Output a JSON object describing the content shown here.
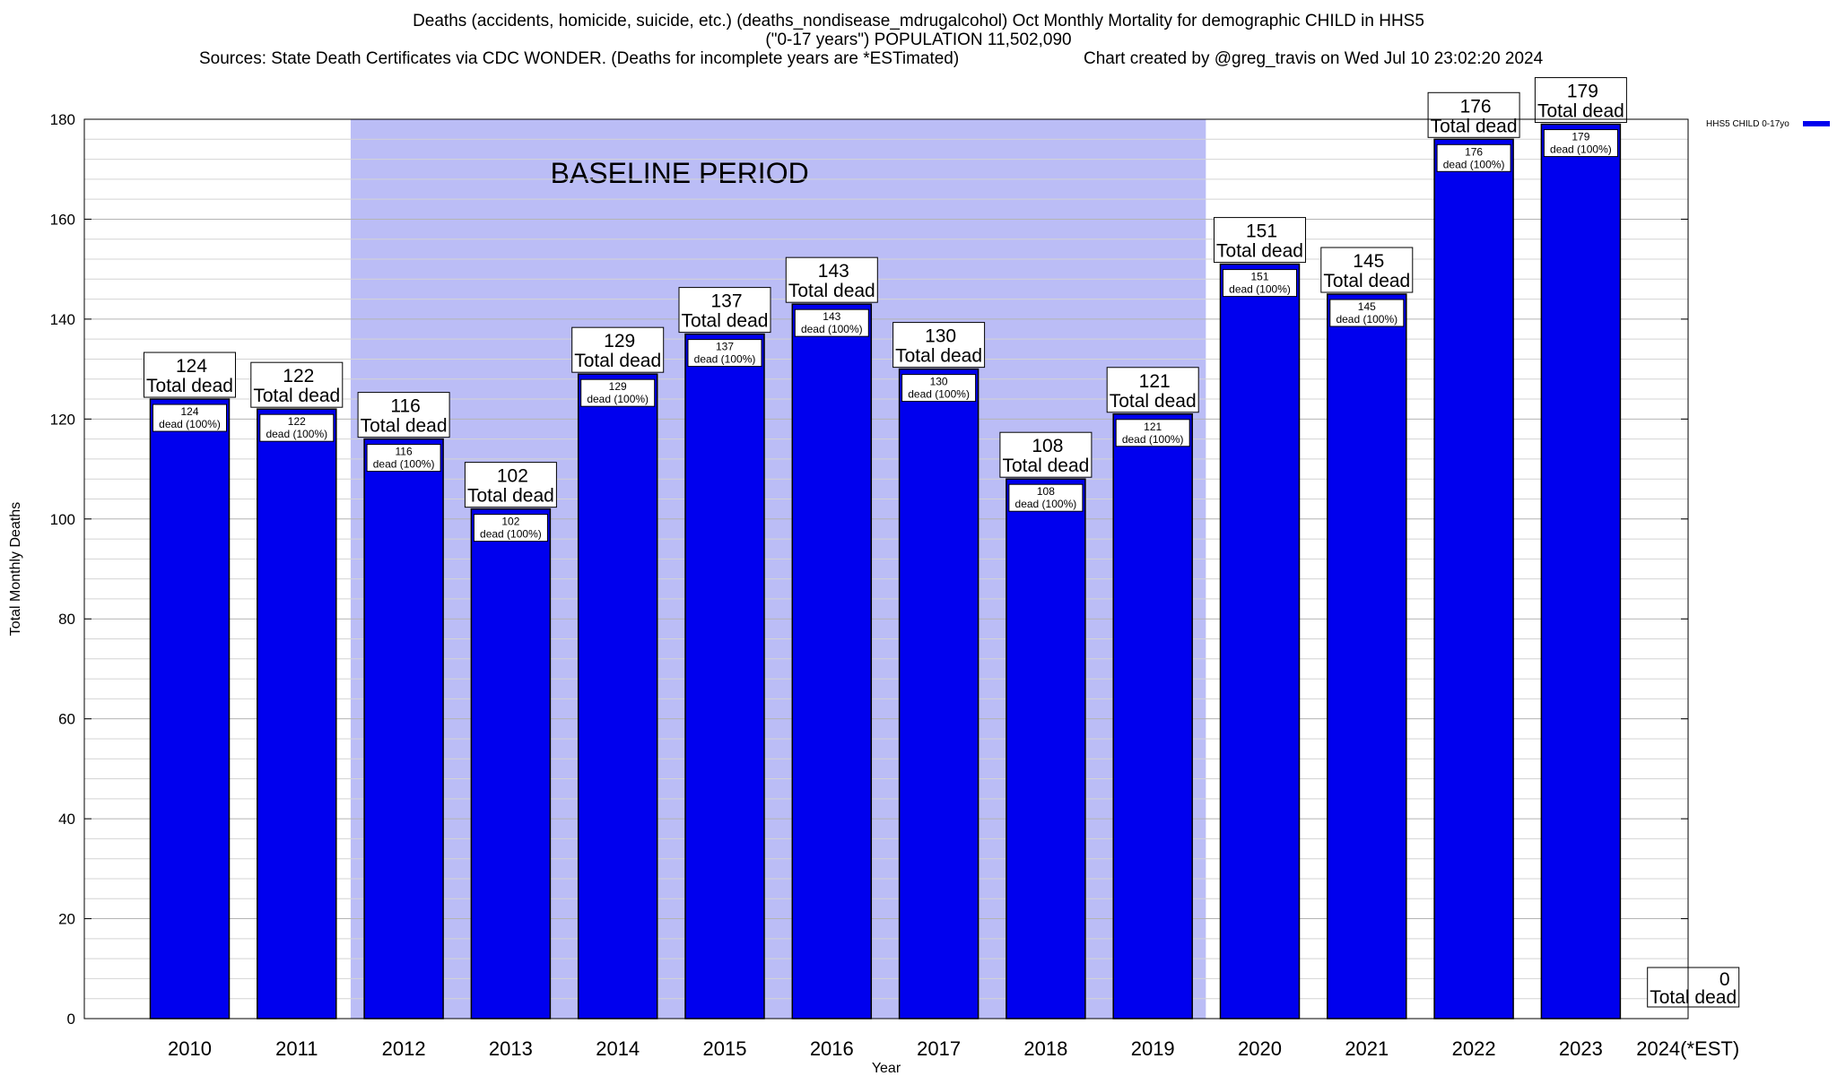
{
  "header": {
    "title_line1": "Deaths (accidents, homicide, suicide, etc.) (deaths_nondisease_mdrugalcohol) Oct Monthly Mortality for demographic CHILD in HHS5",
    "title_line2": "(\"0-17 years\") POPULATION 11,502,090",
    "sources": "Sources: State Death Certificates via CDC WONDER. (Deaths for incomplete years are *ESTimated)",
    "credit": "Chart created by @greg_travis on Wed Jul 10 23:02:20 2024"
  },
  "chart_data": {
    "type": "bar",
    "categories": [
      "2010",
      "2011",
      "2012",
      "2013",
      "2014",
      "2015",
      "2016",
      "2017",
      "2018",
      "2019",
      "2020",
      "2021",
      "2022",
      "2023",
      "2024(*EST)"
    ],
    "series": [
      {
        "name": "HHS5 CHILD 0-17yo",
        "values": [
          124,
          122,
          116,
          102,
          129,
          137,
          143,
          130,
          108,
          121,
          151,
          145,
          176,
          179,
          0
        ]
      }
    ],
    "xlabel": "Year",
    "ylabel": "Total Monthly Deaths",
    "ylim": [
      0,
      180
    ],
    "yticks": [
      0,
      20,
      40,
      60,
      80,
      100,
      120,
      140,
      160,
      180
    ],
    "grid": true,
    "legend_position": "top-right",
    "bar_color": "#0000ee",
    "baseline_color": "#bbbdf6",
    "baseline_label": "BASELINE PERIOD",
    "baseline_range": [
      "2012",
      "2019"
    ],
    "top_label_suffix": "Total dead",
    "inner_label_suffix": "dead (100%)"
  }
}
